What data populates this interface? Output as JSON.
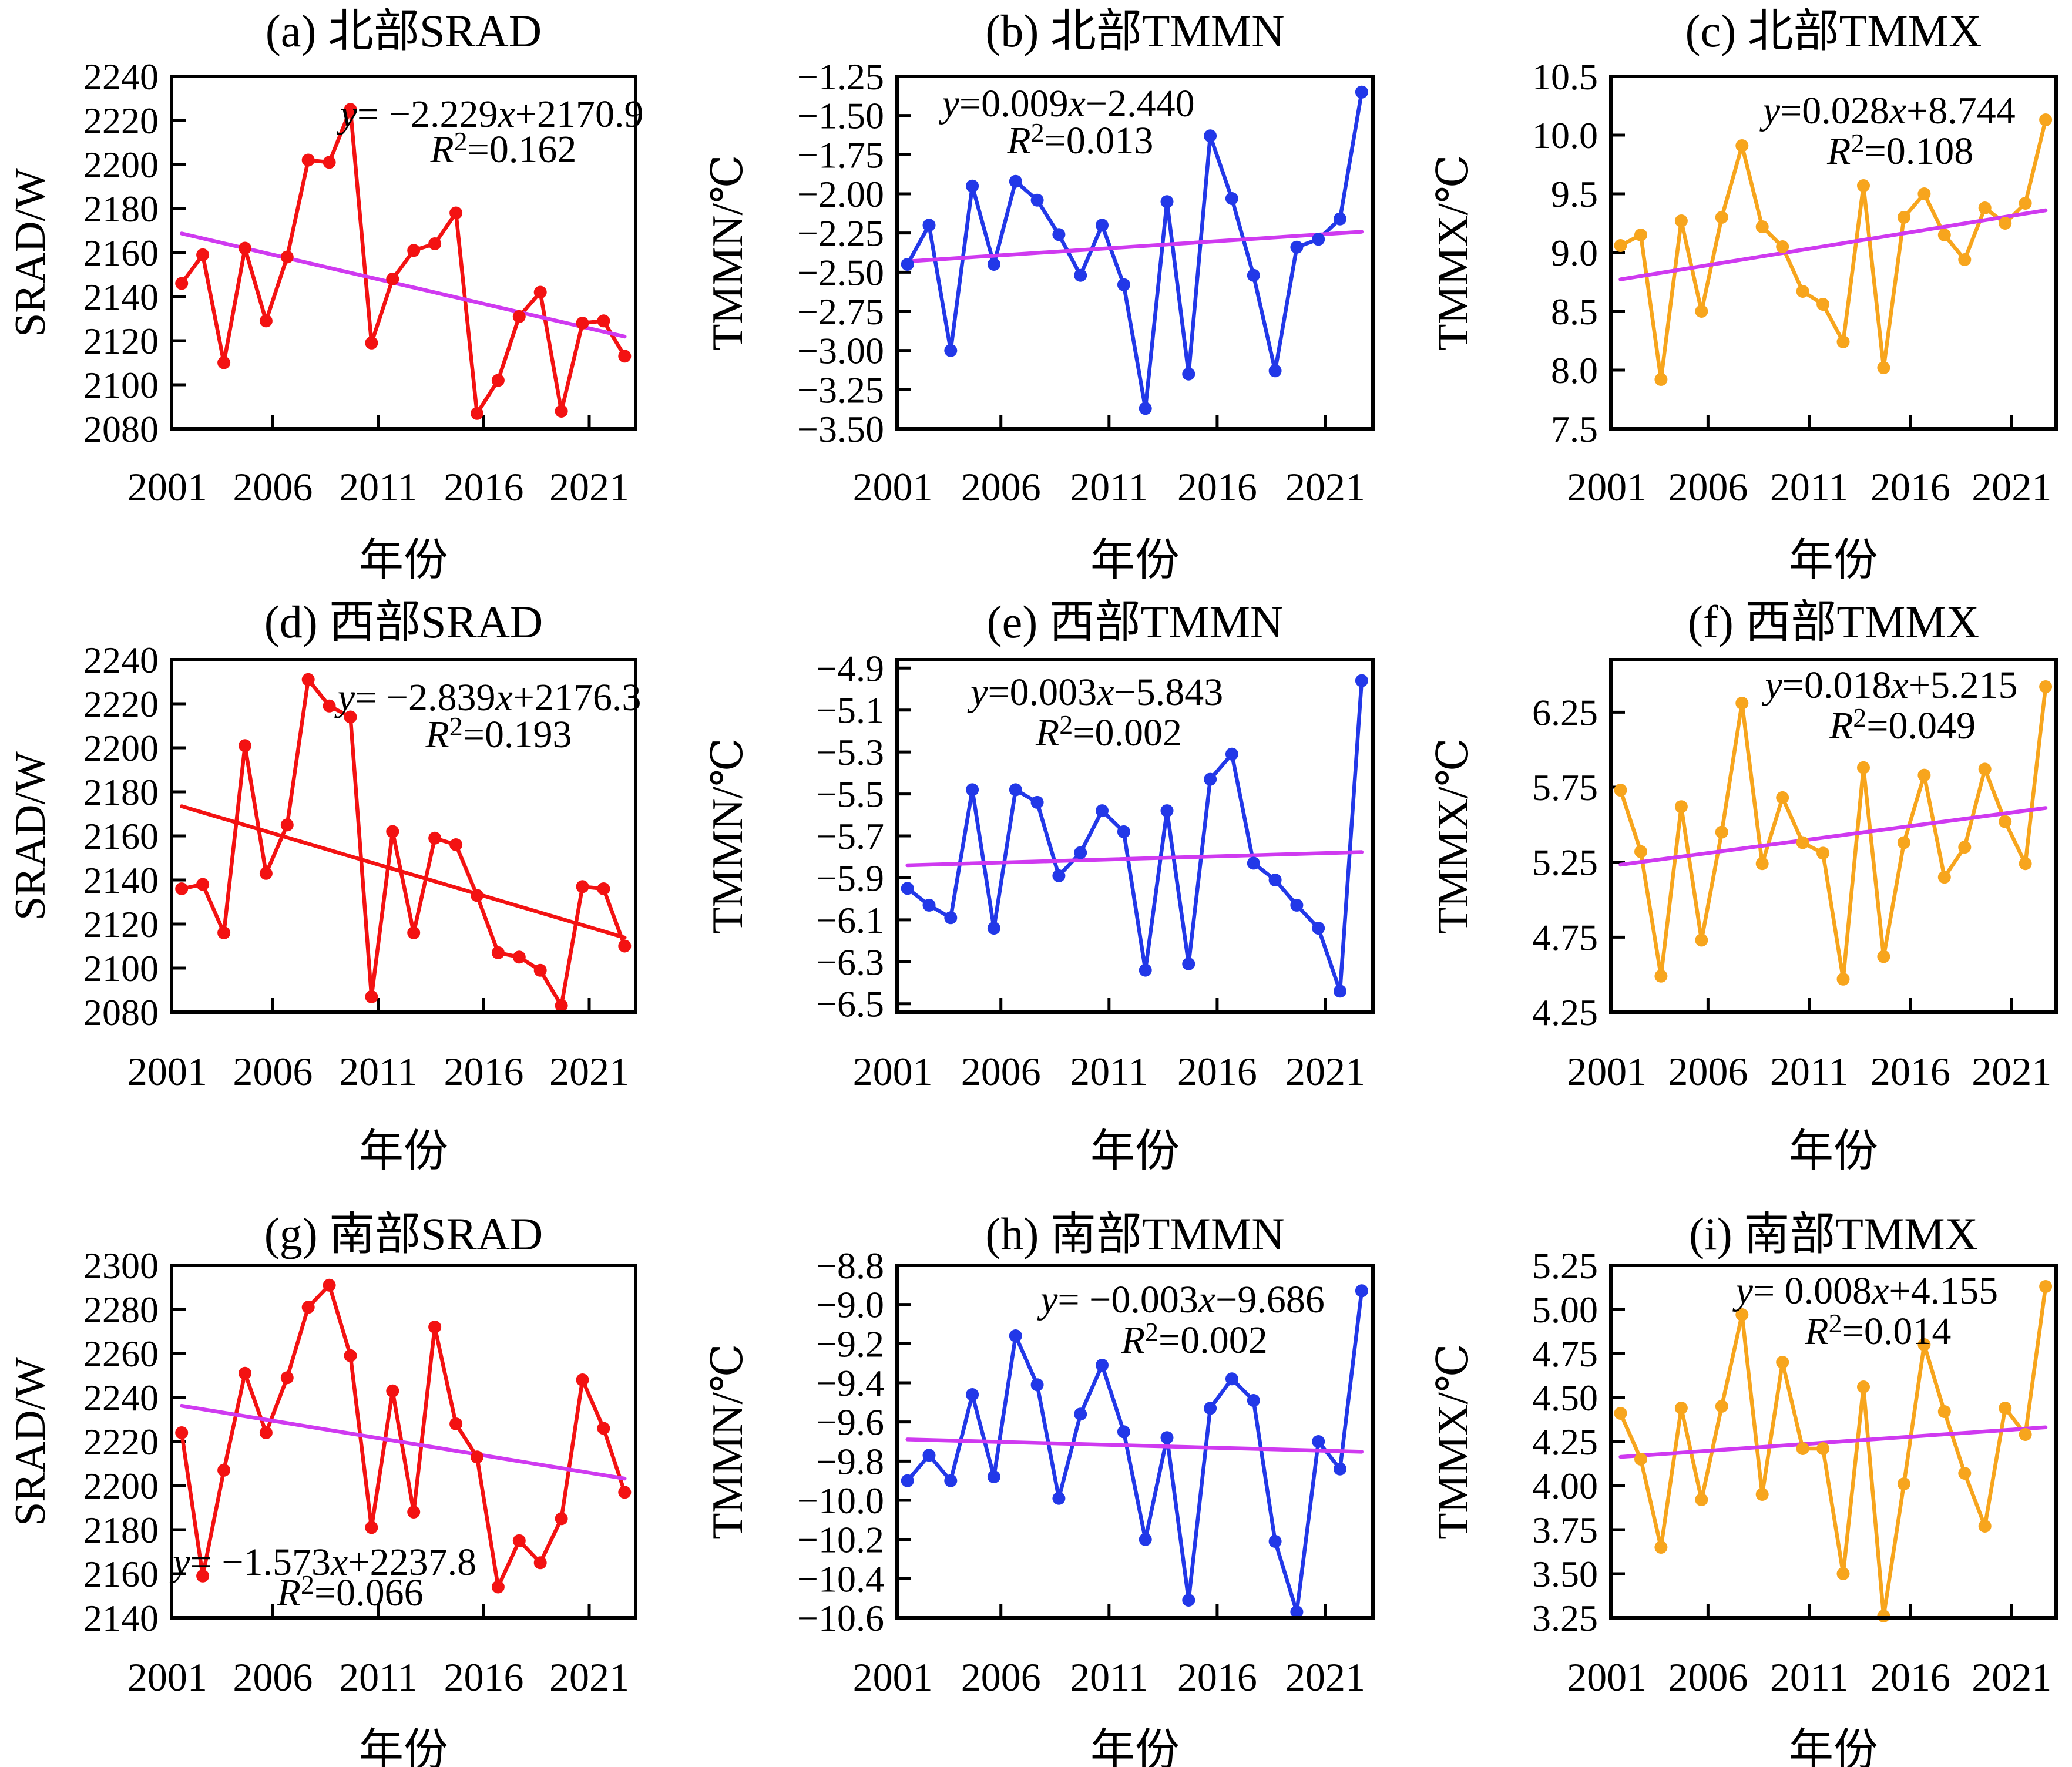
{
  "figure": {
    "xlabel": "年份",
    "x_tick_labels": [
      "2001",
      "2006",
      "2011",
      "2016",
      "2021"
    ],
    "colors": {
      "srad_red": "#f31212",
      "tmmn_blue": "#2238e8",
      "tmmx_orange": "#f7a51d",
      "trend_magenta": "#cf3af0",
      "axis_black": "#000000"
    }
  },
  "chart_data": [
    {
      "id": "a",
      "col": 0,
      "row": 0,
      "type": "line",
      "title": "(a) 北部SRAD",
      "ylabel": "SRAD/W",
      "xlabel": "年份",
      "color": "#f31212",
      "trend_color": "#cf3af0",
      "ymin": 2080,
      "ymax": 2240,
      "yticks": [
        2080,
        2100,
        2120,
        2140,
        2160,
        2180,
        2200,
        2220,
        2240
      ],
      "ytick_labels": [
        "2080",
        "2100",
        "2120",
        "2140",
        "2160",
        "2180",
        "2200",
        "2220",
        "2240"
      ],
      "xticks": [
        2001,
        2006,
        2011,
        2016,
        2021
      ],
      "xtick_labels": [
        "2001",
        "2006",
        "2011",
        "2016",
        "2021"
      ],
      "years": [
        2001,
        2002,
        2003,
        2004,
        2005,
        2006,
        2007,
        2008,
        2009,
        2010,
        2011,
        2012,
        2013,
        2014,
        2015,
        2016,
        2017,
        2018,
        2019,
        2020,
        2021,
        2022
      ],
      "values": [
        2146,
        2159,
        2110,
        2162,
        2129,
        2158,
        2202,
        2201,
        2225,
        2119,
        2148,
        2161,
        2164,
        2178,
        2087,
        2102,
        2131,
        2142,
        2088,
        2128,
        2129,
        2113
      ],
      "trend": {
        "slope": -2.229,
        "intercept": 2170.9,
        "r2": 0.162
      },
      "equation": {
        "segments": [
          [
            "i",
            "y"
          ],
          [
            "n",
            "= −2.229"
          ],
          [
            "i",
            "x"
          ],
          [
            "n",
            "+2170.9"
          ]
        ],
        "r2_label": "R",
        "r2_sup": "2",
        "r2_value": "=0.162"
      },
      "eq_pos": [
        0.69,
        0.105,
        0.715,
        0.205
      ]
    },
    {
      "id": "b",
      "col": 1,
      "row": 0,
      "type": "line",
      "title": "(b) 北部TMMN",
      "ylabel": "TMMN/℃",
      "xlabel": "年份",
      "color": "#2238e8",
      "trend_color": "#cf3af0",
      "ymin": -3.5,
      "ymax": -1.25,
      "yticks": [
        -3.5,
        -3.25,
        -3.0,
        -2.75,
        -2.5,
        -2.25,
        -2.0,
        -1.75,
        -1.5,
        -1.25
      ],
      "ytick_labels": [
        "−3.50",
        "−3.25",
        "−3.00",
        "−2.75",
        "−2.50",
        "−2.25",
        "−2.00",
        "−1.75",
        "−1.50",
        "−1.25"
      ],
      "xticks": [
        2001,
        2006,
        2011,
        2016,
        2021
      ],
      "xtick_labels": [
        "2001",
        "2006",
        "2011",
        "2016",
        "2021"
      ],
      "years": [
        2001,
        2002,
        2003,
        2004,
        2005,
        2006,
        2007,
        2008,
        2009,
        2010,
        2011,
        2012,
        2013,
        2014,
        2015,
        2016,
        2017,
        2018,
        2019,
        2020,
        2021,
        2022
      ],
      "values": [
        -2.45,
        -2.2,
        -3.0,
        -1.95,
        -2.45,
        -1.92,
        -2.04,
        -2.26,
        -2.52,
        -2.2,
        -2.58,
        -3.37,
        -2.05,
        -3.15,
        -1.63,
        -2.03,
        -2.52,
        -3.13,
        -2.34,
        -2.29,
        -2.16,
        -1.35
      ],
      "trend": {
        "slope": 0.009,
        "intercept": -2.44,
        "r2": 0.013
      },
      "equation": {
        "segments": [
          [
            "i",
            "y"
          ],
          [
            "n",
            "=0.009"
          ],
          [
            "i",
            "x"
          ],
          [
            "n",
            "−2.440"
          ]
        ],
        "r2_label": "R",
        "r2_sup": "2",
        "r2_value": "=0.013"
      },
      "eq_pos": [
        0.36,
        0.075,
        0.385,
        0.18
      ]
    },
    {
      "id": "c",
      "col": 2,
      "row": 0,
      "type": "line",
      "title": "(c) 北部TMMX",
      "ylabel": "TMMX/℃",
      "xlabel": "年份",
      "color": "#f7a51d",
      "trend_color": "#cf3af0",
      "ymin": 7.5,
      "ymax": 10.5,
      "yticks": [
        7.5,
        8.0,
        8.5,
        9.0,
        9.5,
        10.0,
        10.5
      ],
      "ytick_labels": [
        "7.5",
        "8.0",
        "8.5",
        "9.0",
        "9.5",
        "10.0",
        "10.5"
      ],
      "xticks": [
        2001,
        2006,
        2011,
        2016,
        2021
      ],
      "xtick_labels": [
        "2001",
        "2006",
        "2011",
        "2016",
        "2021"
      ],
      "years": [
        2001,
        2002,
        2003,
        2004,
        2005,
        2006,
        2007,
        2008,
        2009,
        2010,
        2011,
        2012,
        2013,
        2014,
        2015,
        2016,
        2017,
        2018,
        2019,
        2020,
        2021,
        2022
      ],
      "values": [
        9.06,
        9.15,
        7.92,
        9.27,
        8.5,
        9.3,
        9.91,
        9.22,
        9.05,
        8.67,
        8.56,
        8.24,
        9.57,
        8.02,
        9.3,
        9.5,
        9.15,
        8.94,
        9.38,
        9.25,
        9.42,
        10.13
      ],
      "trend": {
        "slope": 0.028,
        "intercept": 8.744,
        "r2": 0.108
      },
      "equation": {
        "segments": [
          [
            "i",
            "y"
          ],
          [
            "n",
            "=0.028"
          ],
          [
            "i",
            "x"
          ],
          [
            "n",
            "+8.744"
          ]
        ],
        "r2_label": "R",
        "r2_sup": "2",
        "r2_value": "=0.108"
      },
      "eq_pos": [
        0.625,
        0.095,
        0.65,
        0.21
      ]
    },
    {
      "id": "d",
      "col": 0,
      "row": 1,
      "type": "line",
      "title": "(d) 西部SRAD",
      "ylabel": "SRAD/W",
      "xlabel": "年份",
      "color": "#f31212",
      "trend_color": "#f31212",
      "ymin": 2080,
      "ymax": 2240,
      "yticks": [
        2080,
        2100,
        2120,
        2140,
        2160,
        2180,
        2200,
        2220,
        2240
      ],
      "ytick_labels": [
        "2080",
        "2100",
        "2120",
        "2140",
        "2160",
        "2180",
        "2200",
        "2220",
        "2240"
      ],
      "xticks": [
        2001,
        2006,
        2011,
        2016,
        2021
      ],
      "xtick_labels": [
        "2001",
        "2006",
        "2011",
        "2016",
        "2021"
      ],
      "years": [
        2001,
        2002,
        2003,
        2004,
        2005,
        2006,
        2007,
        2008,
        2009,
        2010,
        2011,
        2012,
        2013,
        2014,
        2015,
        2016,
        2017,
        2018,
        2019,
        2020,
        2021,
        2022
      ],
      "values": [
        2136,
        2138,
        2116,
        2201,
        2143,
        2165,
        2231,
        2219,
        2214,
        2087,
        2162,
        2116,
        2159,
        2156,
        2133,
        2107,
        2105,
        2099,
        2083,
        2137,
        2136,
        2110
      ],
      "trend": {
        "slope": -2.839,
        "intercept": 2176.3,
        "r2": 0.193
      },
      "equation": {
        "segments": [
          [
            "i",
            "y"
          ],
          [
            "n",
            "= −2.839"
          ],
          [
            "i",
            "x"
          ],
          [
            "n",
            "+2176.3"
          ]
        ],
        "r2_label": "R",
        "r2_sup": "2",
        "r2_value": "=0.193"
      },
      "eq_pos": [
        0.685,
        0.105,
        0.705,
        0.21
      ]
    },
    {
      "id": "e",
      "col": 1,
      "row": 1,
      "type": "line",
      "title": "(e) 西部TMMN",
      "ylabel": "TMMN/℃",
      "xlabel": "年份",
      "color": "#2238e8",
      "trend_color": "#cf3af0",
      "ymin": -6.54,
      "ymax": -4.86,
      "yticks": [
        -6.5,
        -6.3,
        -6.1,
        -5.9,
        -5.7,
        -5.5,
        -5.3,
        -5.1,
        -4.9
      ],
      "ytick_labels": [
        "−6.5",
        "−6.3",
        "−6.1",
        "−5.9",
        "−5.7",
        "−5.5",
        "−5.3",
        "−5.1",
        "−4.9"
      ],
      "xticks": [
        2001,
        2006,
        2011,
        2016,
        2021
      ],
      "xtick_labels": [
        "2001",
        "2006",
        "2011",
        "2016",
        "2021"
      ],
      "years": [
        2001,
        2002,
        2003,
        2004,
        2005,
        2006,
        2007,
        2008,
        2009,
        2010,
        2011,
        2012,
        2013,
        2014,
        2015,
        2016,
        2017,
        2018,
        2019,
        2020,
        2021,
        2022
      ],
      "values": [
        -5.95,
        -6.03,
        -6.09,
        -5.48,
        -6.14,
        -5.48,
        -5.54,
        -5.89,
        -5.78,
        -5.58,
        -5.68,
        -6.34,
        -5.58,
        -6.31,
        -5.43,
        -5.31,
        -5.83,
        -5.91,
        -6.03,
        -6.14,
        -6.44,
        -4.96
      ],
      "trend": {
        "slope": 0.003,
        "intercept": -5.843,
        "r2": 0.002
      },
      "equation": {
        "segments": [
          [
            "i",
            "y"
          ],
          [
            "n",
            "=0.003"
          ],
          [
            "i",
            "x"
          ],
          [
            "n",
            "−5.843"
          ]
        ],
        "r2_label": "R",
        "r2_sup": "2",
        "r2_value": "=0.002"
      },
      "eq_pos": [
        0.42,
        0.09,
        0.445,
        0.205
      ]
    },
    {
      "id": "f",
      "col": 2,
      "row": 1,
      "type": "line",
      "title": "(f) 西部TMMX",
      "ylabel": "TMMX/℃",
      "xlabel": "年份",
      "color": "#f7a51d",
      "trend_color": "#cf3af0",
      "ymin": 4.25,
      "ymax": 6.6,
      "yticks": [
        4.25,
        4.75,
        5.25,
        5.75,
        6.25
      ],
      "ytick_labels": [
        "4.25",
        "4.75",
        "5.25",
        "5.75",
        "6.25"
      ],
      "xticks": [
        2001,
        2006,
        2011,
        2016,
        2021
      ],
      "xtick_labels": [
        "2001",
        "2006",
        "2011",
        "2016",
        "2021"
      ],
      "years": [
        2001,
        2002,
        2003,
        2004,
        2005,
        2006,
        2007,
        2008,
        2009,
        2010,
        2011,
        2012,
        2013,
        2014,
        2015,
        2016,
        2017,
        2018,
        2019,
        2020,
        2021,
        2022
      ],
      "values": [
        5.73,
        5.32,
        4.49,
        5.62,
        4.73,
        5.45,
        6.31,
        5.24,
        5.68,
        5.38,
        5.31,
        4.47,
        5.88,
        4.62,
        5.38,
        5.83,
        5.15,
        5.35,
        5.87,
        5.52,
        5.24,
        6.42
      ],
      "trend": {
        "slope": 0.018,
        "intercept": 5.215,
        "r2": 0.049
      },
      "equation": {
        "segments": [
          [
            "i",
            "y"
          ],
          [
            "n",
            "=0.018"
          ],
          [
            "i",
            "x"
          ],
          [
            "n",
            "+5.215"
          ]
        ],
        "r2_label": "R",
        "r2_sup": "2",
        "r2_value": "=0.049"
      },
      "eq_pos": [
        0.63,
        0.07,
        0.655,
        0.185
      ]
    },
    {
      "id": "g",
      "col": 0,
      "row": 2,
      "type": "line",
      "title": "(g) 南部SRAD",
      "ylabel": "SRAD/W",
      "xlabel": "年份",
      "color": "#f31212",
      "trend_color": "#cf3af0",
      "ymin": 2140,
      "ymax": 2300,
      "yticks": [
        2140,
        2160,
        2180,
        2200,
        2220,
        2240,
        2260,
        2280,
        2300
      ],
      "ytick_labels": [
        "2140",
        "2160",
        "2180",
        "2200",
        "2220",
        "2240",
        "2260",
        "2280",
        "2300"
      ],
      "xticks": [
        2001,
        2006,
        2011,
        2016,
        2021
      ],
      "xtick_labels": [
        "2001",
        "2006",
        "2011",
        "2016",
        "2021"
      ],
      "years": [
        2001,
        2002,
        2003,
        2004,
        2005,
        2006,
        2007,
        2008,
        2009,
        2010,
        2011,
        2012,
        2013,
        2014,
        2015,
        2016,
        2017,
        2018,
        2019,
        2020,
        2021,
        2022
      ],
      "values": [
        2224,
        2159,
        2207,
        2251,
        2224,
        2249,
        2281,
        2291,
        2259,
        2181,
        2243,
        2188,
        2272,
        2228,
        2213,
        2154,
        2175,
        2165,
        2185,
        2248,
        2226,
        2197
      ],
      "trend": {
        "slope": -1.573,
        "intercept": 2237.8,
        "r2": 0.066
      },
      "equation": {
        "segments": [
          [
            "i",
            "y"
          ],
          [
            "n",
            "= −1.573"
          ],
          [
            "i",
            "x"
          ],
          [
            "n",
            "+2237.8"
          ]
        ],
        "r2_label": "R",
        "r2_sup": "2",
        "r2_value": "=0.066"
      },
      "eq_pos": [
        0.33,
        0.84,
        0.385,
        0.927
      ]
    },
    {
      "id": "h",
      "col": 1,
      "row": 2,
      "type": "line",
      "title": "(h) 南部TMMN",
      "ylabel": "TMMN/℃",
      "xlabel": "年份",
      "color": "#2238e8",
      "trend_color": "#cf3af0",
      "ymin": -10.6,
      "ymax": -8.8,
      "yticks": [
        -10.6,
        -10.4,
        -10.2,
        -10.0,
        -9.8,
        -9.6,
        -9.4,
        -9.2,
        -9.0,
        -8.8
      ],
      "ytick_labels": [
        "−10.6",
        "−10.4",
        "−10.2",
        "−10.0",
        "−9.8",
        "−9.6",
        "−9.4",
        "−9.2",
        "−9.0",
        "−8.8"
      ],
      "xticks": [
        2001,
        2006,
        2011,
        2016,
        2021
      ],
      "xtick_labels": [
        "2001",
        "2006",
        "2011",
        "2016",
        "2021"
      ],
      "years": [
        2001,
        2002,
        2003,
        2004,
        2005,
        2006,
        2007,
        2008,
        2009,
        2010,
        2011,
        2012,
        2013,
        2014,
        2015,
        2016,
        2017,
        2018,
        2019,
        2020,
        2021,
        2022
      ],
      "values": [
        -9.9,
        -9.77,
        -9.9,
        -9.46,
        -9.88,
        -9.16,
        -9.41,
        -9.99,
        -9.56,
        -9.31,
        -9.65,
        -10.2,
        -9.68,
        -10.51,
        -9.53,
        -9.38,
        -9.49,
        -10.21,
        -10.57,
        -9.7,
        -9.84,
        -8.93
      ],
      "trend": {
        "slope": -0.003,
        "intercept": -9.686,
        "r2": 0.002
      },
      "equation": {
        "segments": [
          [
            "i",
            "y"
          ],
          [
            "n",
            "= −0.003"
          ],
          [
            "i",
            "x"
          ],
          [
            "n",
            "−9.686"
          ]
        ],
        "r2_label": "R",
        "r2_sup": "2",
        "r2_value": "=0.002"
      },
      "eq_pos": [
        0.6,
        0.095,
        0.625,
        0.21
      ]
    },
    {
      "id": "i",
      "col": 2,
      "row": 2,
      "type": "line",
      "title": "(i) 南部TMMX",
      "ylabel": "TMMX/℃",
      "xlabel": "年份",
      "color": "#f7a51d",
      "trend_color": "#cf3af0",
      "ymin": 3.25,
      "ymax": 5.25,
      "yticks": [
        3.25,
        3.5,
        3.75,
        4.0,
        4.25,
        4.5,
        4.75,
        5.0,
        5.25
      ],
      "ytick_labels": [
        "3.25",
        "3.50",
        "3.75",
        "4.00",
        "4.25",
        "4.50",
        "4.75",
        "5.00",
        "5.25"
      ],
      "xticks": [
        2001,
        2006,
        2011,
        2016,
        2021
      ],
      "xtick_labels": [
        "2001",
        "2006",
        "2011",
        "2016",
        "2021"
      ],
      "years": [
        2001,
        2002,
        2003,
        2004,
        2005,
        2006,
        2007,
        2008,
        2009,
        2010,
        2011,
        2012,
        2013,
        2014,
        2015,
        2016,
        2017,
        2018,
        2019,
        2020,
        2021,
        2022
      ],
      "values": [
        4.41,
        4.15,
        3.65,
        4.44,
        3.92,
        4.45,
        4.97,
        3.95,
        4.7,
        4.21,
        4.21,
        3.5,
        4.56,
        3.26,
        4.01,
        4.8,
        4.42,
        4.07,
        3.77,
        4.44,
        4.29,
        5.13
      ],
      "trend": {
        "slope": 0.008,
        "intercept": 4.155,
        "r2": 0.014
      },
      "equation": {
        "segments": [
          [
            "i",
            "y"
          ],
          [
            "n",
            "= 0.008"
          ],
          [
            "i",
            "x"
          ],
          [
            "n",
            "+4.155"
          ]
        ],
        "r2_label": "R",
        "r2_sup": "2",
        "r2_value": "=0.014"
      },
      "eq_pos": [
        0.575,
        0.07,
        0.6,
        0.185
      ]
    }
  ]
}
